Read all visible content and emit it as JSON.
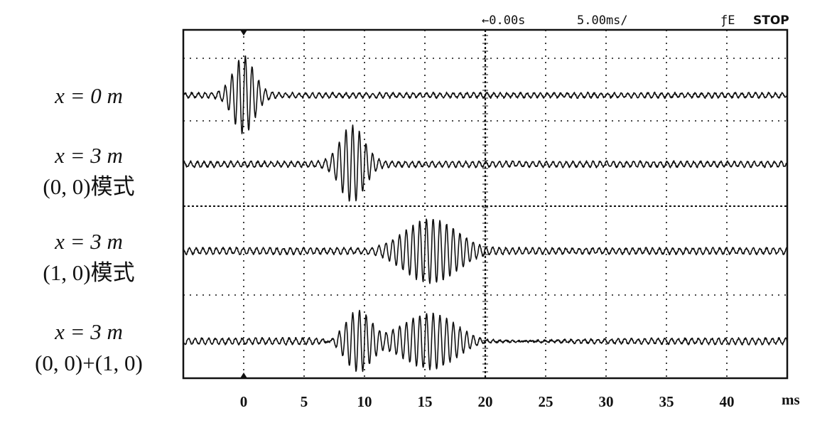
{
  "status_bar": {
    "time_offset": "←0.00s",
    "time_per_div": "5.00ms/",
    "trigger": "ƒE",
    "run_state": "STOP"
  },
  "row_labels": [
    {
      "line1": "x = 0 m",
      "line2": ""
    },
    {
      "line1": "x = 3 m",
      "line2": "(0, 0)模式"
    },
    {
      "line1": "x = 3 m",
      "line2": "(1, 0)模式"
    },
    {
      "line1": "x = 3 m",
      "line2": "(0, 0)+(1, 0)"
    }
  ],
  "chart_data": {
    "type": "line",
    "xlabel": "ms",
    "ylabel": "",
    "xlim": [
      -5,
      45
    ],
    "xticks": [
      0,
      5,
      10,
      15,
      20,
      25,
      30,
      35,
      40
    ],
    "grid": true,
    "series": [
      {
        "name": "x = 0 m",
        "packets": [
          {
            "center_ms": 0,
            "width_ms": 1.2,
            "amplitude": 1.0,
            "freq_khz": 1.8
          }
        ],
        "noise_amplitude": 0.06
      },
      {
        "name": "x = 3 m (0, 0)模式",
        "packets": [
          {
            "center_ms": 9,
            "width_ms": 1.4,
            "amplitude": 1.0,
            "freq_khz": 1.8
          }
        ],
        "noise_amplitude": 0.07
      },
      {
        "name": "x = 3 m (1, 0)模式",
        "packets": [
          {
            "center_ms": 15.5,
            "width_ms": 3.2,
            "amplitude": 0.9,
            "freq_khz": 1.8
          }
        ],
        "tail_decay_ms": 6,
        "noise_amplitude": 0.08
      },
      {
        "name": "x = 3 m (0, 0)+(1, 0)",
        "packets": [
          {
            "center_ms": 9.5,
            "width_ms": 1.6,
            "amplitude": 0.9,
            "freq_khz": 1.8
          },
          {
            "center_ms": 15.5,
            "width_ms": 3.0,
            "amplitude": 0.75,
            "freq_khz": 1.8
          }
        ],
        "tail_decay_ms": 6,
        "noise_amplitude": 0.08
      }
    ]
  }
}
